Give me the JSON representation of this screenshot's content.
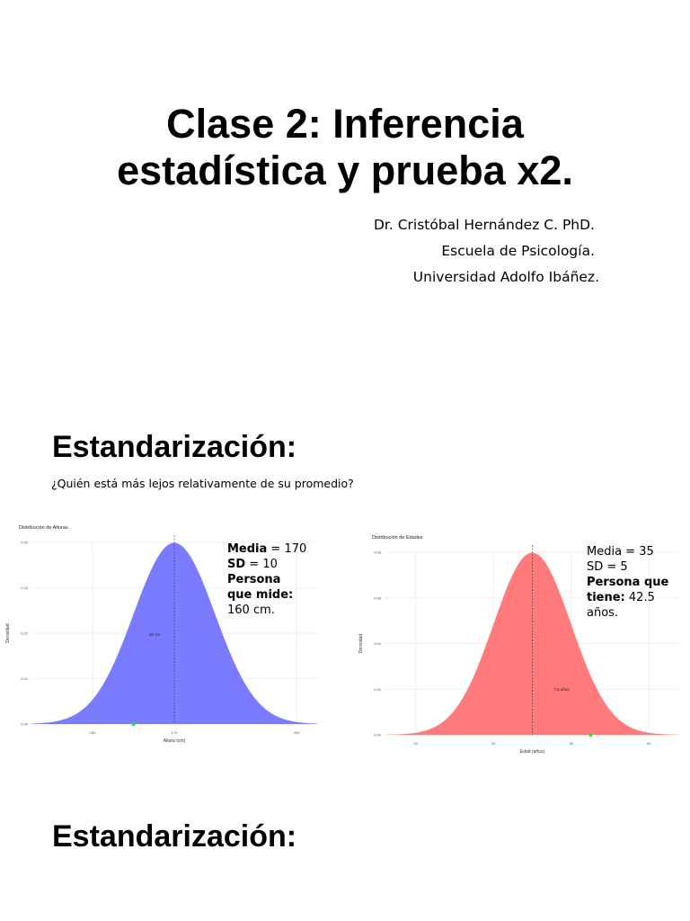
{
  "slide1": {
    "title_line1": "Clase 2: Inferencia",
    "title_line2": "estadística y prueba x2.",
    "author": [
      "Dr. Cristóbal Hernández C. PhD.",
      "Escuela de Psicología.",
      "Universidad Adolfo Ibáñez."
    ]
  },
  "slide2": {
    "heading": "Estandarización:",
    "question": "¿Quién está más lejos relativamente de su promedio?",
    "left_note": {
      "media_label": "Media",
      "media_value": " = 170",
      "sd_label": "SD",
      "sd_value": " = 10",
      "persona_label": "Persona que mide:",
      "persona_value": " 160 cm."
    },
    "right_note": {
      "media_text": "Media = 35",
      "sd_text": "SD = 5",
      "persona_label": "Persona que tiene:",
      "persona_value": " 42.5 años."
    }
  },
  "slide3": {
    "heading": "Estandarización:"
  },
  "chart_data": [
    {
      "type": "area",
      "title": "Distribución de Alturas",
      "xlabel": "Altura (cm)",
      "ylabel": "Densidad",
      "distribution": "normal",
      "mean": 170,
      "sd": 10,
      "xlim": [
        135,
        205
      ],
      "ylim": [
        0,
        0.04
      ],
      "x_ticks": [
        "150",
        "170",
        "200"
      ],
      "y_ticks": [
        "0.00",
        "0.01",
        "0.02",
        "0.03",
        "0.04"
      ],
      "mean_line": 170,
      "marked_point": 160,
      "annotation": "-10 cm",
      "fill_color": "#7b7bff",
      "grid": true
    },
    {
      "type": "area",
      "title": "Distribución de Edades",
      "xlabel": "Edad (años)",
      "ylabel": "Densidad",
      "distribution": "normal",
      "mean": 35,
      "sd": 5,
      "xlim": [
        16,
        54
      ],
      "ylim": [
        0,
        0.08
      ],
      "x_ticks": [
        "20",
        "30",
        "40",
        "50"
      ],
      "y_ticks": [
        "0.00",
        "0.02",
        "0.04",
        "0.06",
        "0.08"
      ],
      "mean_line": 35,
      "marked_point": 42.5,
      "annotation": "7.5 años",
      "fill_color": "#ff7b7b",
      "grid": true
    }
  ]
}
